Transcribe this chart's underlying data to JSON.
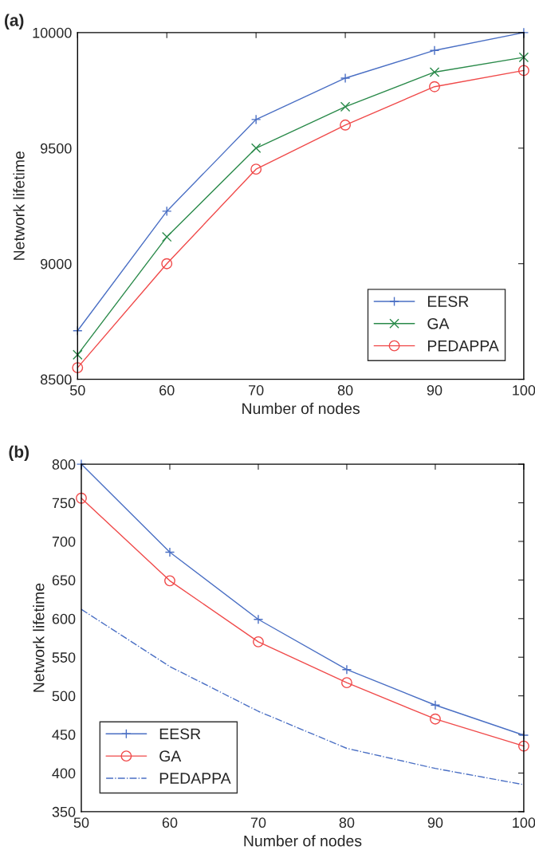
{
  "chart_data": [
    {
      "type": "line",
      "title": "(a)",
      "xlabel": "Number of nodes",
      "ylabel": "Network lifetime",
      "x": [
        50,
        60,
        70,
        80,
        90,
        100
      ],
      "series": [
        {
          "name": "EESR",
          "color": "#4a6fc4",
          "marker": "plus",
          "line_style": "solid",
          "values": [
            8710,
            9227,
            9624,
            9803,
            9923,
            10000
          ]
        },
        {
          "name": "GA",
          "color": "#2a8a4a",
          "marker": "cross",
          "line_style": "solid",
          "values": [
            8606,
            9116,
            9500,
            9679,
            9829,
            9893
          ]
        },
        {
          "name": "PEDAPPA",
          "color": "#f04a4a",
          "marker": "circle",
          "line_style": "solid",
          "values": [
            8550,
            9000,
            9409,
            9600,
            9766,
            9836
          ]
        }
      ],
      "xlim": [
        50,
        100
      ],
      "xticks": [
        50,
        60,
        70,
        80,
        90,
        100
      ],
      "ylim": [
        8500,
        10000
      ],
      "yticks": [
        8500,
        9000,
        9500,
        10000
      ],
      "grid": false,
      "legend": "bottom right"
    },
    {
      "type": "line",
      "title": "(b)",
      "xlabel": "Number of nodes",
      "ylabel": "Network lifetime",
      "x": [
        50,
        60,
        70,
        80,
        90,
        100
      ],
      "series": [
        {
          "name": "EESR",
          "color": "#4a6fc4",
          "marker": "plus",
          "line_style": "solid",
          "values": [
            800,
            686,
            599,
            534,
            488,
            449
          ]
        },
        {
          "name": "GA",
          "color": "#f04a4a",
          "marker": "circle",
          "line_style": "solid",
          "values": [
            756,
            649,
            570,
            517,
            470,
            435
          ]
        },
        {
          "name": "PEDAPPA",
          "color": "#4a6fc4",
          "marker": "none",
          "line_style": "dashdot",
          "values": [
            612,
            538,
            480,
            432,
            406,
            385
          ]
        }
      ],
      "xlim": [
        50,
        100
      ],
      "xticks": [
        50,
        60,
        70,
        80,
        90,
        100
      ],
      "ylim": [
        350,
        800
      ],
      "yticks": [
        350,
        400,
        450,
        500,
        550,
        600,
        650,
        700,
        750,
        800
      ],
      "grid": false,
      "legend": "bottom left"
    }
  ]
}
